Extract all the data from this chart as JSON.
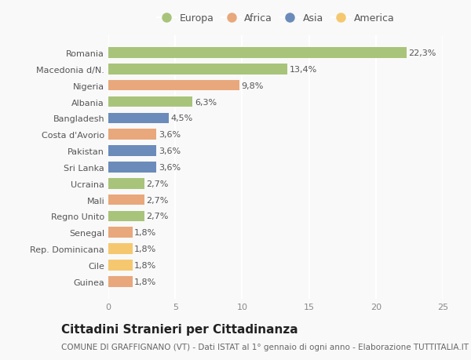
{
  "categories": [
    "Guinea",
    "Cile",
    "Rep. Dominicana",
    "Senegal",
    "Regno Unito",
    "Mali",
    "Ucraina",
    "Sri Lanka",
    "Pakistan",
    "Costa d'Avorio",
    "Bangladesh",
    "Albania",
    "Nigeria",
    "Macedonia d/N.",
    "Romania"
  ],
  "values": [
    1.8,
    1.8,
    1.8,
    1.8,
    2.7,
    2.7,
    2.7,
    3.6,
    3.6,
    3.6,
    4.5,
    6.3,
    9.8,
    13.4,
    22.3
  ],
  "labels": [
    "1,8%",
    "1,8%",
    "1,8%",
    "1,8%",
    "2,7%",
    "2,7%",
    "2,7%",
    "3,6%",
    "3,6%",
    "3,6%",
    "4,5%",
    "6,3%",
    "9,8%",
    "13,4%",
    "22,3%"
  ],
  "colors": [
    "#e8a87c",
    "#f5c870",
    "#f5c870",
    "#e8a87c",
    "#a8c47a",
    "#e8a87c",
    "#a8c47a",
    "#6b8cba",
    "#6b8cba",
    "#e8a87c",
    "#6b8cba",
    "#a8c47a",
    "#e8a87c",
    "#a8c47a",
    "#a8c47a"
  ],
  "legend": [
    {
      "label": "Europa",
      "color": "#a8c47a"
    },
    {
      "label": "Africa",
      "color": "#e8a87c"
    },
    {
      "label": "Asia",
      "color": "#6b8cba"
    },
    {
      "label": "America",
      "color": "#f5c870"
    }
  ],
  "xlim": [
    0,
    25
  ],
  "xticks": [
    0,
    5,
    10,
    15,
    20,
    25
  ],
  "title": "Cittadini Stranieri per Cittadinanza",
  "subtitle": "COMUNE DI GRAFFIGNANO (VT) - Dati ISTAT al 1° gennaio di ogni anno - Elaborazione TUTTITALIA.IT",
  "background_color": "#f9f9f9",
  "bar_height": 0.65,
  "title_fontsize": 11,
  "subtitle_fontsize": 7.5,
  "label_fontsize": 8,
  "tick_fontsize": 8,
  "legend_fontsize": 9
}
